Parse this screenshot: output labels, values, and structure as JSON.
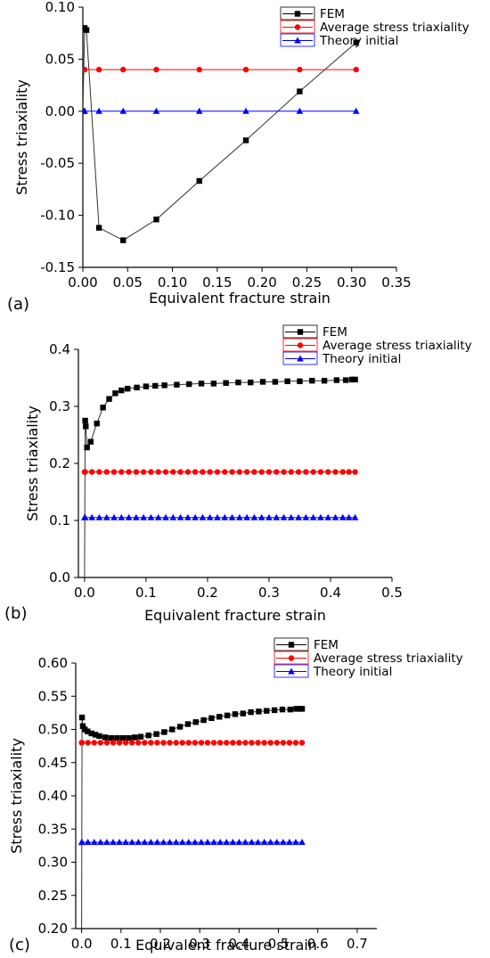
{
  "chart_data": [
    {
      "panel_label": "(a)",
      "type": "line",
      "xlabel": "Equivalent fracture strain",
      "ylabel": "Stress triaxiality",
      "xlim": [
        0,
        0.35
      ],
      "ylim": [
        -0.15,
        0.1
      ],
      "xticks": [
        0.0,
        0.05,
        0.1,
        0.15,
        0.2,
        0.25,
        0.3,
        0.35
      ],
      "yticks": [
        -0.15,
        -0.1,
        -0.05,
        0.0,
        0.05,
        0.1
      ],
      "xtick_labels": [
        "0.00",
        "0.05",
        "0.10",
        "0.15",
        "0.20",
        "0.25",
        "0.30",
        "0.35"
      ],
      "ytick_labels": [
        "-0.15",
        "-0.10",
        "-0.05",
        "0.00",
        "0.05",
        "0.10"
      ],
      "legend_position": "top-right",
      "series": [
        {
          "name": "FEM",
          "color": "#000000",
          "marker": "square",
          "x": [
            0.0,
            0.002,
            0.004,
            0.018,
            0.045,
            0.082,
            0.13,
            0.182,
            0.242,
            0.305
          ],
          "y": [
            0.0,
            0.08,
            0.078,
            -0.112,
            -0.124,
            -0.104,
            -0.067,
            -0.028,
            0.019,
            0.066
          ]
        },
        {
          "name": "Average stress triaxiality",
          "color": "#ff0000",
          "marker": "circle",
          "x": [
            0.0,
            0.002,
            0.018,
            0.045,
            0.082,
            0.13,
            0.182,
            0.242,
            0.305
          ],
          "y": [
            0.04,
            0.04,
            0.04,
            0.04,
            0.04,
            0.04,
            0.04,
            0.04,
            0.04
          ]
        },
        {
          "name": "Theory initial",
          "color": "#0000ff",
          "marker": "triangle",
          "x": [
            0.0,
            0.002,
            0.018,
            0.045,
            0.082,
            0.13,
            0.182,
            0.242,
            0.305
          ],
          "y": [
            0.0,
            0.0,
            0.0,
            0.0,
            0.0,
            0.0,
            0.0,
            0.0,
            0.0
          ]
        }
      ]
    },
    {
      "panel_label": "(b)",
      "type": "line",
      "xlabel": "Equivalent fracture strain",
      "ylabel": "Stress triaxiality",
      "xlim": [
        -0.01,
        0.5
      ],
      "ylim": [
        0.0,
        0.4
      ],
      "xticks": [
        0.0,
        0.1,
        0.2,
        0.3,
        0.4,
        0.5
      ],
      "yticks": [
        0.0,
        0.1,
        0.2,
        0.3,
        0.4
      ],
      "xtick_labels": [
        "0.0",
        "0.1",
        "0.2",
        "0.3",
        "0.4",
        "0.5"
      ],
      "ytick_labels": [
        "0.0",
        "0.1",
        "0.2",
        "0.3",
        "0.4"
      ],
      "legend_position": "top-right",
      "series": [
        {
          "name": "FEM",
          "color": "#000000",
          "marker": "square",
          "x": [
            0.0,
            0.001,
            0.002,
            0.004,
            0.01,
            0.02,
            0.03,
            0.04,
            0.05,
            0.06,
            0.07,
            0.085,
            0.1,
            0.115,
            0.13,
            0.15,
            0.17,
            0.19,
            0.21,
            0.23,
            0.25,
            0.27,
            0.29,
            0.31,
            0.33,
            0.35,
            0.37,
            0.39,
            0.41,
            0.425,
            0.435,
            0.44
          ],
          "y": [
            0.0,
            0.275,
            0.265,
            0.228,
            0.238,
            0.27,
            0.298,
            0.313,
            0.323,
            0.328,
            0.331,
            0.333,
            0.335,
            0.336,
            0.337,
            0.338,
            0.339,
            0.34,
            0.34,
            0.341,
            0.342,
            0.342,
            0.343,
            0.343,
            0.344,
            0.344,
            0.345,
            0.345,
            0.346,
            0.346,
            0.347,
            0.347
          ]
        },
        {
          "name": "Average stress triaxiality",
          "color": "#ff0000",
          "marker": "circle",
          "x": [
            0.0,
            0.001,
            0.012,
            0.024,
            0.036,
            0.048,
            0.06,
            0.072,
            0.084,
            0.096,
            0.108,
            0.12,
            0.132,
            0.144,
            0.156,
            0.168,
            0.18,
            0.192,
            0.204,
            0.216,
            0.228,
            0.24,
            0.252,
            0.264,
            0.276,
            0.288,
            0.3,
            0.312,
            0.324,
            0.336,
            0.348,
            0.36,
            0.372,
            0.384,
            0.396,
            0.408,
            0.42,
            0.43,
            0.44
          ],
          "y": [
            0.185,
            0.185,
            0.185,
            0.185,
            0.185,
            0.185,
            0.185,
            0.185,
            0.185,
            0.185,
            0.185,
            0.185,
            0.185,
            0.185,
            0.185,
            0.185,
            0.185,
            0.185,
            0.185,
            0.185,
            0.185,
            0.185,
            0.185,
            0.185,
            0.185,
            0.185,
            0.185,
            0.185,
            0.185,
            0.185,
            0.185,
            0.185,
            0.185,
            0.185,
            0.185,
            0.185,
            0.185,
            0.185,
            0.185
          ]
        },
        {
          "name": "Theory initial",
          "color": "#0000ff",
          "marker": "triangle",
          "x": [
            0.0,
            0.001,
            0.012,
            0.024,
            0.036,
            0.048,
            0.06,
            0.072,
            0.084,
            0.096,
            0.108,
            0.12,
            0.132,
            0.144,
            0.156,
            0.168,
            0.18,
            0.192,
            0.204,
            0.216,
            0.228,
            0.24,
            0.252,
            0.264,
            0.276,
            0.288,
            0.3,
            0.312,
            0.324,
            0.336,
            0.348,
            0.36,
            0.372,
            0.384,
            0.396,
            0.408,
            0.42,
            0.43,
            0.44
          ],
          "y": [
            0.105,
            0.105,
            0.105,
            0.105,
            0.105,
            0.105,
            0.105,
            0.105,
            0.105,
            0.105,
            0.105,
            0.105,
            0.105,
            0.105,
            0.105,
            0.105,
            0.105,
            0.105,
            0.105,
            0.105,
            0.105,
            0.105,
            0.105,
            0.105,
            0.105,
            0.105,
            0.105,
            0.105,
            0.105,
            0.105,
            0.105,
            0.105,
            0.105,
            0.105,
            0.105,
            0.105,
            0.105,
            0.105,
            0.105
          ]
        }
      ]
    },
    {
      "panel_label": "(c)",
      "type": "line",
      "xlabel": "Equivalent fracture strain",
      "ylabel": "Stress triaxiality",
      "xlim": [
        -0.015,
        0.75
      ],
      "ylim": [
        0.2,
        0.6
      ],
      "xticks": [
        0.0,
        0.1,
        0.2,
        0.3,
        0.4,
        0.5,
        0.6,
        0.7
      ],
      "yticks": [
        0.2,
        0.25,
        0.3,
        0.35,
        0.4,
        0.45,
        0.5,
        0.55,
        0.6
      ],
      "xtick_labels": [
        "0.0",
        "0.1",
        "0.2",
        "0.3",
        "0.4",
        "0.5",
        "0.6",
        "0.7"
      ],
      "ytick_labels": [
        "0.20",
        "0.25",
        "0.30",
        "0.35",
        "0.40",
        "0.45",
        "0.50",
        "0.55",
        "0.60"
      ],
      "legend_position": "top-right",
      "series": [
        {
          "name": "FEM",
          "color": "#000000",
          "marker": "square",
          "x": [
            0.0,
            0.001,
            0.003,
            0.008,
            0.015,
            0.025,
            0.035,
            0.045,
            0.06,
            0.075,
            0.09,
            0.105,
            0.12,
            0.135,
            0.15,
            0.17,
            0.19,
            0.21,
            0.23,
            0.25,
            0.27,
            0.29,
            0.31,
            0.33,
            0.35,
            0.37,
            0.39,
            0.41,
            0.43,
            0.45,
            0.47,
            0.49,
            0.51,
            0.53,
            0.545,
            0.555,
            0.56
          ],
          "y": [
            0.2,
            0.518,
            0.505,
            0.5,
            0.497,
            0.494,
            0.492,
            0.49,
            0.488,
            0.487,
            0.487,
            0.487,
            0.487,
            0.488,
            0.489,
            0.491,
            0.493,
            0.496,
            0.5,
            0.504,
            0.508,
            0.511,
            0.514,
            0.517,
            0.519,
            0.521,
            0.523,
            0.524,
            0.526,
            0.527,
            0.528,
            0.529,
            0.53,
            0.53,
            0.531,
            0.531,
            0.531
          ]
        },
        {
          "name": "Average stress triaxiality",
          "color": "#ff0000",
          "marker": "circle",
          "x": [
            0.0,
            0.001,
            0.016,
            0.032,
            0.048,
            0.064,
            0.08,
            0.096,
            0.112,
            0.128,
            0.144,
            0.16,
            0.176,
            0.192,
            0.208,
            0.224,
            0.24,
            0.256,
            0.272,
            0.288,
            0.304,
            0.32,
            0.336,
            0.352,
            0.368,
            0.384,
            0.4,
            0.416,
            0.432,
            0.448,
            0.464,
            0.48,
            0.496,
            0.512,
            0.528,
            0.544,
            0.56
          ],
          "y": [
            0.48,
            0.48,
            0.48,
            0.48,
            0.48,
            0.48,
            0.48,
            0.48,
            0.48,
            0.48,
            0.48,
            0.48,
            0.48,
            0.48,
            0.48,
            0.48,
            0.48,
            0.48,
            0.48,
            0.48,
            0.48,
            0.48,
            0.48,
            0.48,
            0.48,
            0.48,
            0.48,
            0.48,
            0.48,
            0.48,
            0.48,
            0.48,
            0.48,
            0.48,
            0.48,
            0.48,
            0.48
          ]
        },
        {
          "name": "Theory initial",
          "color": "#0000ff",
          "marker": "triangle",
          "x": [
            0.0,
            0.001,
            0.016,
            0.032,
            0.048,
            0.064,
            0.08,
            0.096,
            0.112,
            0.128,
            0.144,
            0.16,
            0.176,
            0.192,
            0.208,
            0.224,
            0.24,
            0.256,
            0.272,
            0.288,
            0.304,
            0.32,
            0.336,
            0.352,
            0.368,
            0.384,
            0.4,
            0.416,
            0.432,
            0.448,
            0.464,
            0.48,
            0.496,
            0.512,
            0.528,
            0.544,
            0.56
          ],
          "y": [
            0.33,
            0.33,
            0.33,
            0.33,
            0.33,
            0.33,
            0.33,
            0.33,
            0.33,
            0.33,
            0.33,
            0.33,
            0.33,
            0.33,
            0.33,
            0.33,
            0.33,
            0.33,
            0.33,
            0.33,
            0.33,
            0.33,
            0.33,
            0.33,
            0.33,
            0.33,
            0.33,
            0.33,
            0.33,
            0.33,
            0.33,
            0.33,
            0.33,
            0.33,
            0.33,
            0.33,
            0.33
          ]
        }
      ]
    }
  ]
}
